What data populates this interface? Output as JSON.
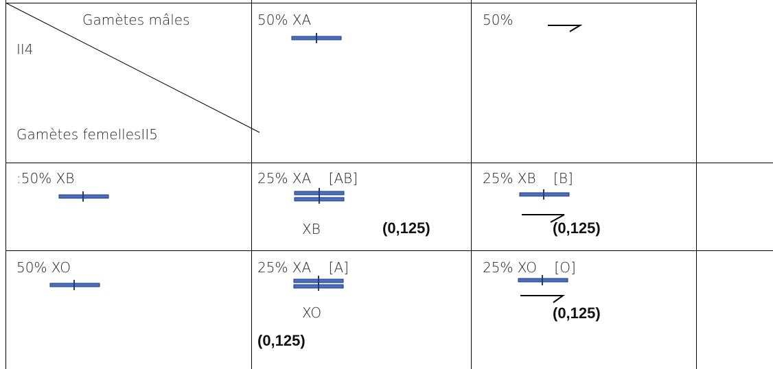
{
  "header": {
    "male_gametes_label": "Gamètes mâles",
    "male_parent": "II4",
    "female_gametes_label": "Gamètes femellesII5",
    "male_col1": "50% XA",
    "male_col2": "50%"
  },
  "rows": [
    {
      "female_gamete": ":50% XB",
      "cell1": {
        "top": "25% XA",
        "phenotype": "[AB]",
        "second": "XB",
        "freq": "(0,125)"
      },
      "cell2": {
        "top": "25% XB",
        "phenotype": "[B]",
        "freq": "(0,125)"
      }
    },
    {
      "female_gamete": "50% XO",
      "cell1": {
        "top": "25% XA",
        "phenotype": "[A]",
        "second": "XO",
        "freq": "(0,125)"
      },
      "cell2": {
        "top": "25% XO",
        "phenotype": "[O]",
        "freq": "(0,125)"
      }
    }
  ],
  "colors": {
    "chromosome_fill": "#4a6fc0",
    "chromosome_stroke": "#1f3a78",
    "grid": "#000000"
  }
}
